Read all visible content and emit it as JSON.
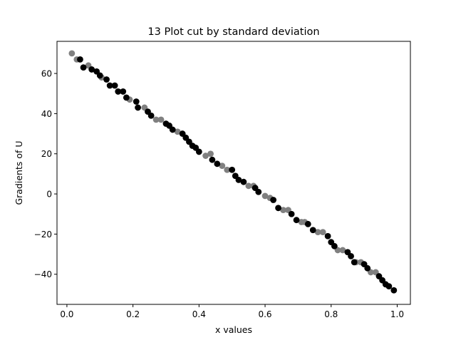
{
  "chart_data": {
    "type": "scatter",
    "title": "13 Plot cut by standard deviation",
    "xlabel": "x values",
    "ylabel": "Gradients of U",
    "xlim": [
      -0.03,
      1.04
    ],
    "ylim": [
      -55,
      76
    ],
    "xticks": [
      0.0,
      0.2,
      0.4,
      0.6,
      0.8,
      1.0
    ],
    "yticks": [
      -40,
      -20,
      0,
      20,
      40,
      60
    ],
    "grid": false,
    "legend": "none",
    "colors": {
      "kept": "#000000",
      "cut": "#808080"
    },
    "series": [
      {
        "color": "gray",
        "points": [
          [
            0.015,
            70
          ],
          [
            0.03,
            67
          ],
          [
            0.065,
            64
          ],
          [
            0.105,
            58
          ],
          [
            0.19,
            47
          ],
          [
            0.235,
            43
          ],
          [
            0.27,
            37
          ],
          [
            0.285,
            37
          ],
          [
            0.335,
            31
          ],
          [
            0.42,
            19
          ],
          [
            0.435,
            20
          ],
          [
            0.47,
            14
          ],
          [
            0.485,
            12
          ],
          [
            0.55,
            4
          ],
          [
            0.565,
            4
          ],
          [
            0.6,
            -1
          ],
          [
            0.615,
            -2
          ],
          [
            0.655,
            -8
          ],
          [
            0.67,
            -8
          ],
          [
            0.71,
            -14
          ],
          [
            0.72,
            -14
          ],
          [
            0.76,
            -19
          ],
          [
            0.775,
            -19
          ],
          [
            0.82,
            -28
          ],
          [
            0.835,
            -28
          ],
          [
            0.875,
            -34
          ],
          [
            0.89,
            -34
          ],
          [
            0.92,
            -39
          ],
          [
            0.935,
            -39
          ]
        ]
      },
      {
        "color": "black",
        "points": [
          [
            0.04,
            67
          ],
          [
            0.05,
            63
          ],
          [
            0.075,
            62
          ],
          [
            0.09,
            61
          ],
          [
            0.1,
            59
          ],
          [
            0.12,
            57
          ],
          [
            0.13,
            54
          ],
          [
            0.145,
            54
          ],
          [
            0.155,
            51
          ],
          [
            0.17,
            51
          ],
          [
            0.18,
            48
          ],
          [
            0.21,
            46
          ],
          [
            0.215,
            43
          ],
          [
            0.245,
            41
          ],
          [
            0.255,
            39
          ],
          [
            0.3,
            35
          ],
          [
            0.31,
            34
          ],
          [
            0.32,
            32
          ],
          [
            0.35,
            30
          ],
          [
            0.36,
            28
          ],
          [
            0.37,
            26
          ],
          [
            0.38,
            24
          ],
          [
            0.39,
            23
          ],
          [
            0.4,
            21
          ],
          [
            0.44,
            17
          ],
          [
            0.455,
            15
          ],
          [
            0.5,
            12
          ],
          [
            0.51,
            9
          ],
          [
            0.52,
            7
          ],
          [
            0.535,
            6
          ],
          [
            0.57,
            3
          ],
          [
            0.58,
            1
          ],
          [
            0.625,
            -3
          ],
          [
            0.64,
            -7
          ],
          [
            0.68,
            -10
          ],
          [
            0.695,
            -13
          ],
          [
            0.73,
            -15
          ],
          [
            0.745,
            -18
          ],
          [
            0.79,
            -21
          ],
          [
            0.8,
            -24
          ],
          [
            0.81,
            -26
          ],
          [
            0.85,
            -29
          ],
          [
            0.86,
            -31
          ],
          [
            0.87,
            -34
          ],
          [
            0.9,
            -35
          ],
          [
            0.91,
            -37
          ],
          [
            0.945,
            -41
          ],
          [
            0.955,
            -43
          ],
          [
            0.965,
            -45
          ],
          [
            0.975,
            -46
          ],
          [
            0.99,
            -48
          ]
        ]
      }
    ]
  }
}
